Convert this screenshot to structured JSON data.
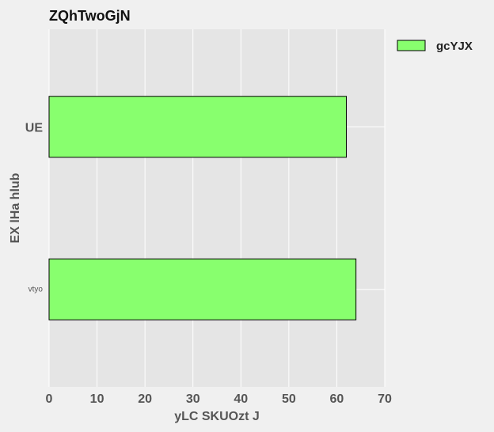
{
  "chart_data": {
    "type": "bar",
    "orientation": "horizontal",
    "title": "ZQhTwoGjN",
    "xlabel": "yLC SKUOzt J",
    "ylabel": "EX  lHa hlub",
    "categories": [
      "UE",
      "vtyo"
    ],
    "series": [
      {
        "name": "gcYJX",
        "values": [
          62,
          64
        ]
      }
    ],
    "xlim": [
      0,
      70
    ],
    "xticks": [
      0,
      10,
      20,
      30,
      40,
      50,
      60,
      70
    ],
    "grid": true,
    "legend": "top-right outside"
  },
  "colors": {
    "background": "#f0f0f0",
    "plot_background": "#e5e5e5",
    "grid": "#ffffff",
    "bar_fill": "#88ff6e",
    "bar_edge": "#000000"
  }
}
